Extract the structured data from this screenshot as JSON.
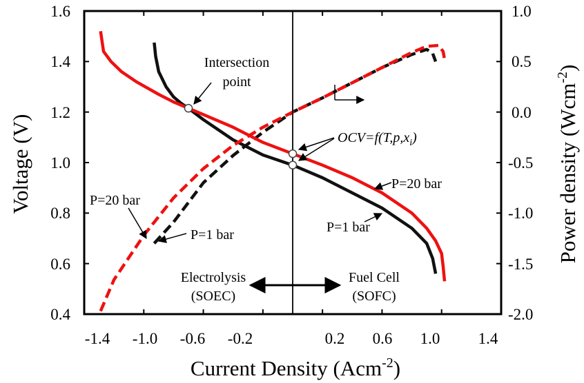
{
  "chart_data": {
    "type": "line",
    "xlabel": "Current Density (Acm",
    "xlabel_sup": "-2",
    "xlabel_end": ")",
    "ylabel": "Voltage (V)",
    "y2label": "Power density (Wcm",
    "y2label_sup": "-2",
    "y2label_end": ")",
    "xlim": [
      -1.4,
      1.4
    ],
    "ylim": [
      0.4,
      1.6
    ],
    "y2lim": [
      -2.0,
      1.0
    ],
    "xticks": [
      "-1.4",
      "-1.0",
      "-0.6",
      "-0.2",
      "0.2",
      "0.6",
      "1.0",
      "1.4"
    ],
    "yticks": [
      "0.4",
      "0.6",
      "0.8",
      "1.0",
      "1.2",
      "1.4",
      "1.6"
    ],
    "y2ticks": [
      "-2.0",
      "-1.5",
      "-1.0",
      "-0.5",
      "0.0",
      "0.5",
      "1.0"
    ],
    "grid": false,
    "colors": {
      "p20": "#ee1111",
      "p1": "#111111"
    },
    "series": [
      {
        "name": "P=20 bar",
        "kind": "voltage",
        "axis": "left",
        "dash": false,
        "color": "#ee1111",
        "x": [
          -1.29,
          -1.27,
          -1.22,
          -1.15,
          -1.05,
          -0.9,
          -0.8,
          -0.7,
          -0.6,
          -0.4,
          -0.2,
          0.0,
          0.2,
          0.4,
          0.6,
          0.8,
          0.9,
          0.96,
          1.0,
          1.01,
          1.02
        ],
        "y": [
          1.52,
          1.44,
          1.4,
          1.36,
          1.32,
          1.27,
          1.24,
          1.215,
          1.19,
          1.14,
          1.08,
          1.035,
          0.99,
          0.94,
          0.88,
          0.8,
          0.74,
          0.69,
          0.64,
          0.59,
          0.53
        ]
      },
      {
        "name": "P=1 bar",
        "kind": "voltage",
        "axis": "left",
        "dash": false,
        "color": "#111111",
        "x": [
          -0.93,
          -0.92,
          -0.9,
          -0.85,
          -0.8,
          -0.75,
          -0.7,
          -0.6,
          -0.4,
          -0.2,
          0.0,
          0.2,
          0.4,
          0.6,
          0.8,
          0.9,
          0.94,
          0.96
        ],
        "y": [
          1.475,
          1.42,
          1.36,
          1.3,
          1.26,
          1.235,
          1.215,
          1.17,
          1.09,
          1.03,
          0.99,
          0.94,
          0.88,
          0.82,
          0.74,
          0.68,
          0.62,
          0.56
        ]
      },
      {
        "name": "P=20 bar",
        "kind": "power",
        "axis": "right",
        "dash": true,
        "color": "#ee1111",
        "x": [
          -1.29,
          -1.2,
          -1.0,
          -0.8,
          -0.6,
          -0.4,
          -0.2,
          0.0,
          0.2,
          0.4,
          0.6,
          0.8,
          0.9,
          0.98,
          1.01,
          1.02
        ],
        "y": [
          -1.97,
          -1.66,
          -1.22,
          -0.85,
          -0.56,
          -0.33,
          -0.15,
          0.0,
          0.14,
          0.29,
          0.44,
          0.59,
          0.65,
          0.66,
          0.6,
          0.52
        ]
      },
      {
        "name": "P=1 bar",
        "kind": "power",
        "axis": "right",
        "dash": true,
        "color": "#111111",
        "x": [
          -0.93,
          -0.8,
          -0.6,
          -0.4,
          -0.2,
          0.0,
          0.2,
          0.4,
          0.6,
          0.8,
          0.9,
          0.94,
          0.96
        ],
        "y": [
          -1.3,
          -1.09,
          -0.7,
          -0.43,
          -0.2,
          0.0,
          0.14,
          0.29,
          0.44,
          0.57,
          0.62,
          0.58,
          0.5
        ]
      }
    ],
    "markers": [
      {
        "x": -0.7,
        "y": 1.215
      },
      {
        "x": 0.0,
        "y": 1.035
      },
      {
        "x": 0.0,
        "y": 0.99
      }
    ],
    "vline_x": 0.0,
    "annotations": {
      "intersection_line1": "Intersection",
      "intersection_line2": "point",
      "ocv": "OCV=f(T,p,x",
      "ocv_sub": "i",
      "ocv_end": ")",
      "p20_right": "P=20 bar",
      "p1_right": "P=1 bar",
      "p20_left": "P=20 bar",
      "p1_left": "P=1 bar",
      "electrolysis_line1": "Electrolysis",
      "electrolysis_line2": "(SOEC)",
      "fuelcell_line1": "Fuel Cell",
      "fuelcell_line2": "(SOFC)"
    }
  }
}
